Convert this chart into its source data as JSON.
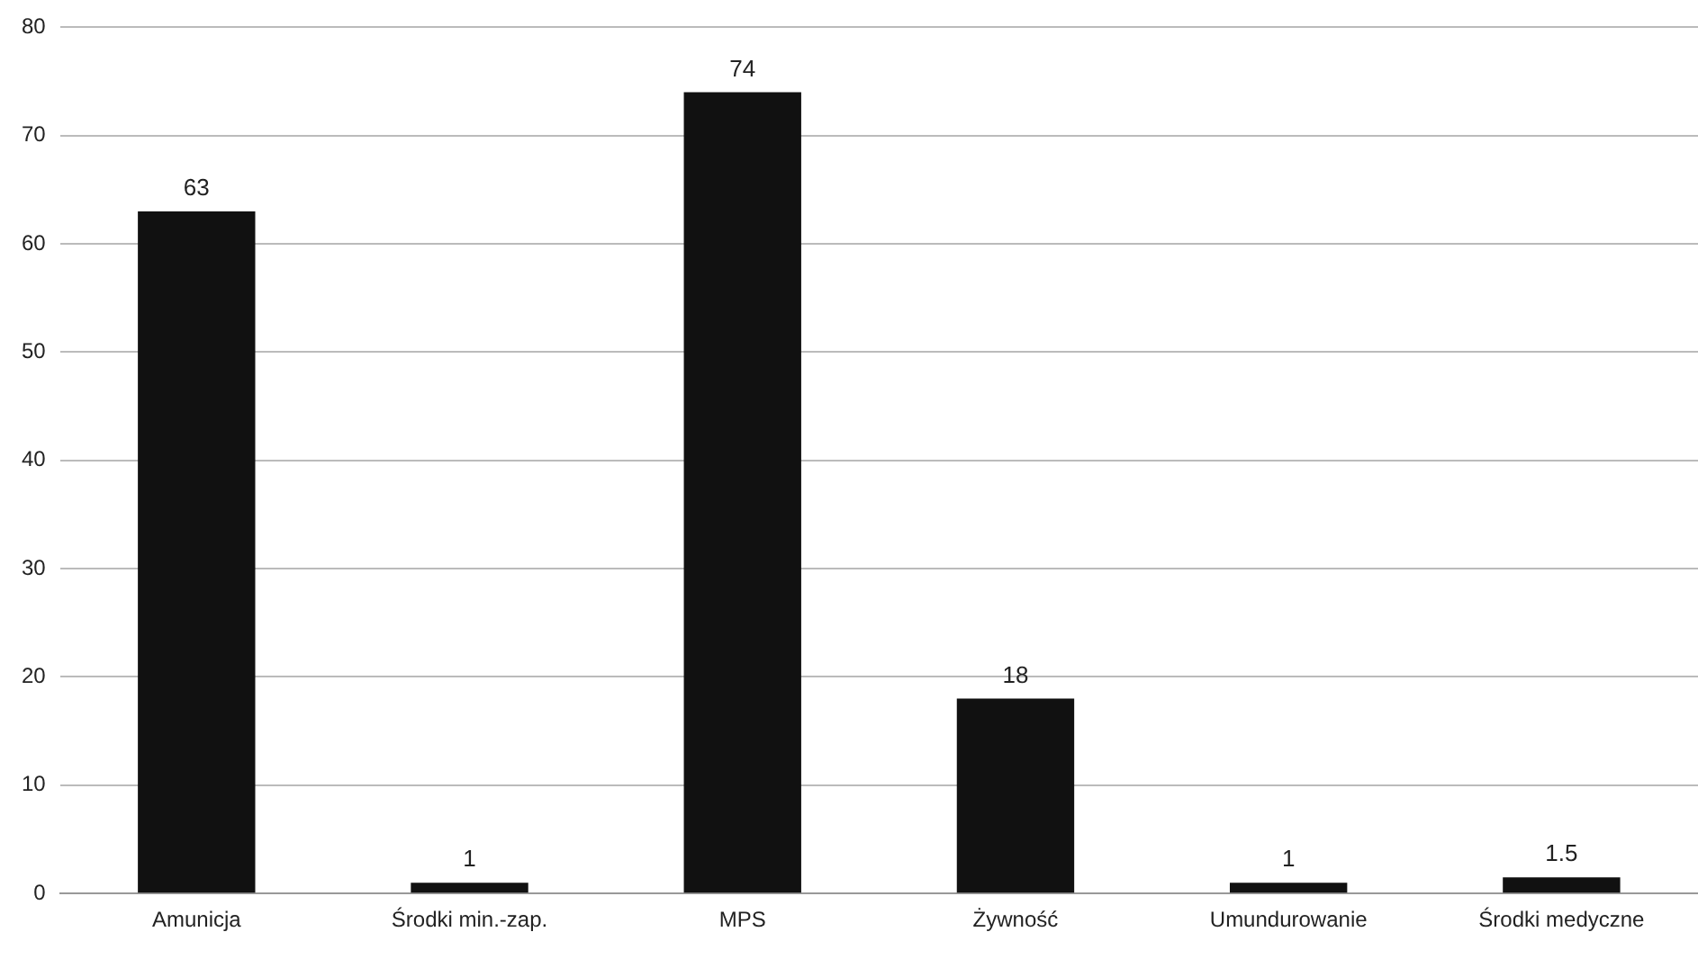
{
  "chart_data": {
    "type": "bar",
    "categories": [
      "Amunicja",
      "Środki min.-zap.",
      "MPS",
      "Żywność",
      "Umundurowanie",
      "Środki medyczne"
    ],
    "values": [
      63,
      1,
      74,
      18,
      1,
      1.5
    ],
    "color": "#111111",
    "ylim": [
      0,
      80
    ],
    "yticks": [
      0,
      10,
      20,
      30,
      40,
      50,
      60,
      70,
      80
    ],
    "grid": "y",
    "data_labels": true,
    "legend": false
  }
}
